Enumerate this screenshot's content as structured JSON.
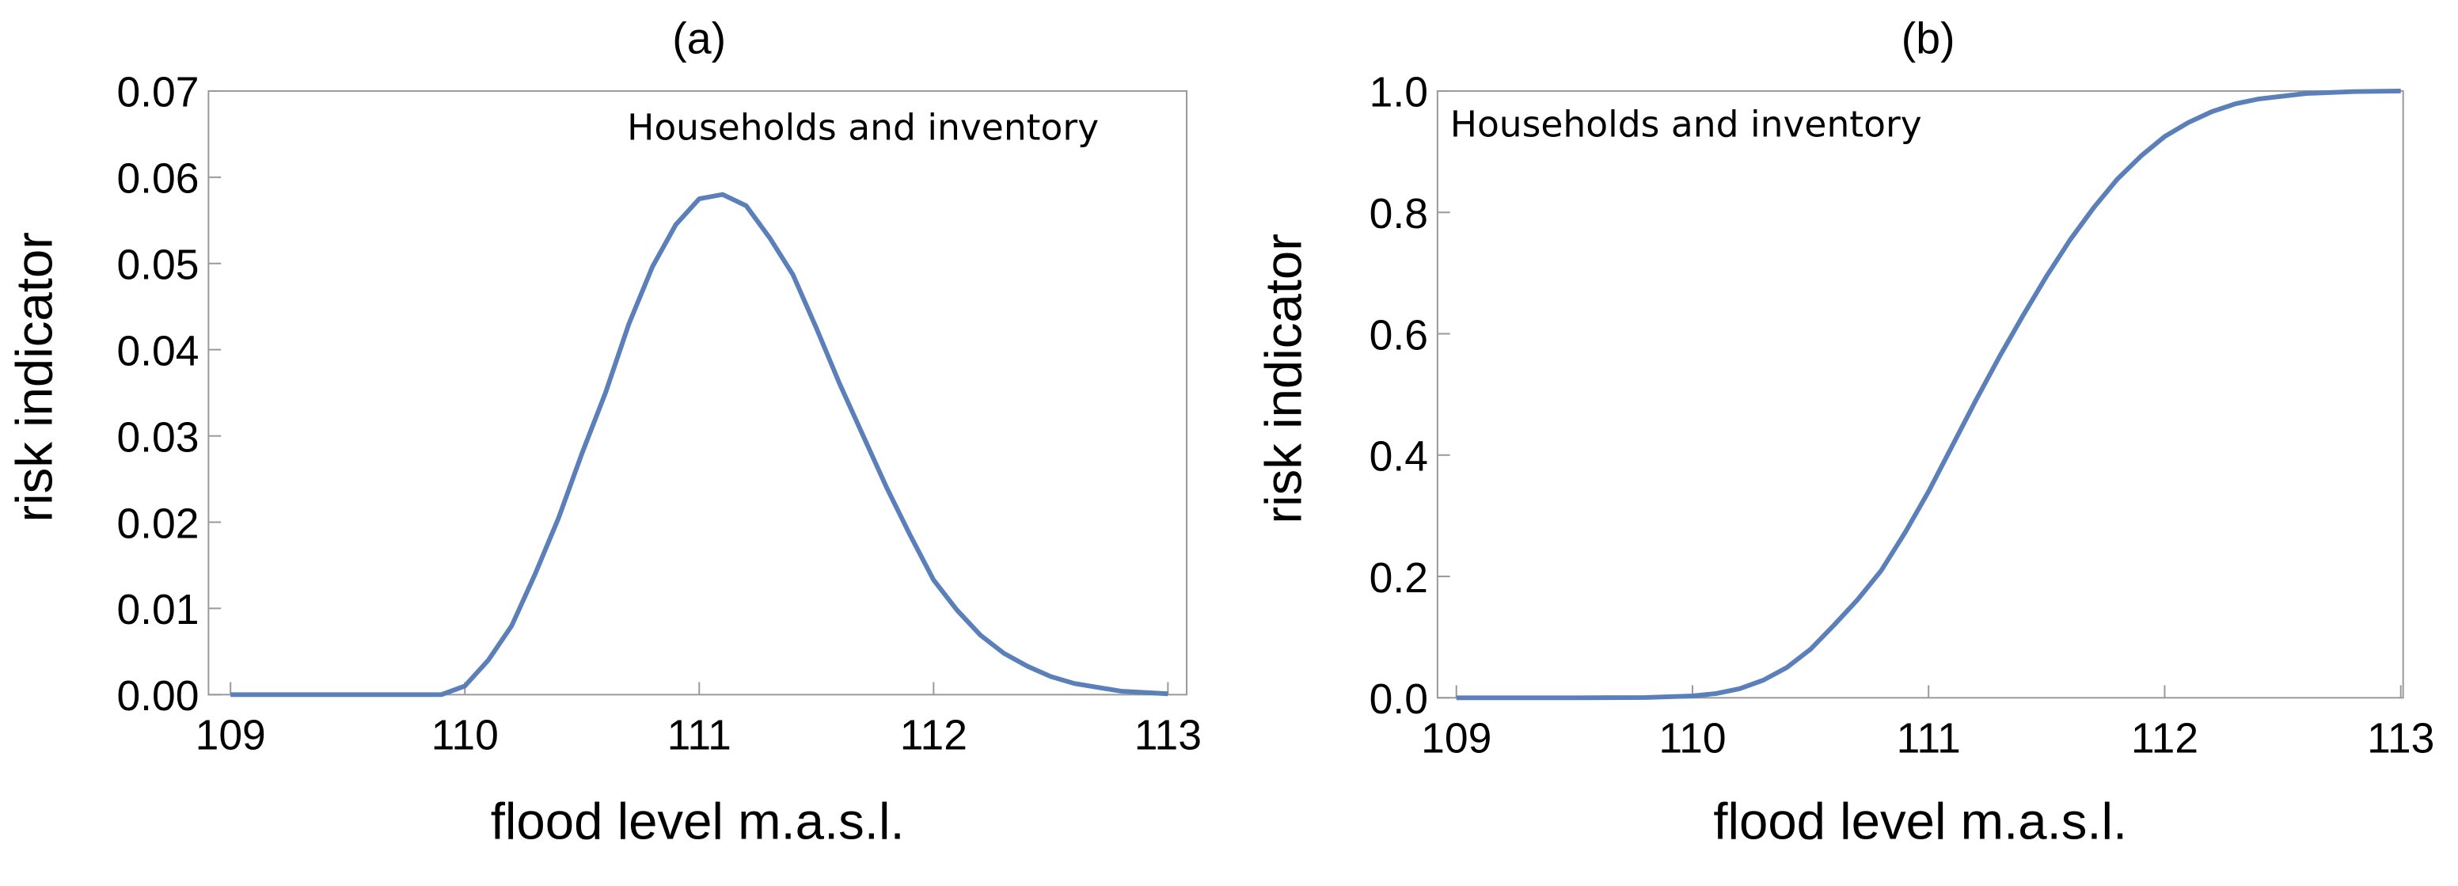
{
  "chart_data": [
    {
      "type": "line",
      "title": "(a)",
      "xlabel": "flood level m.a.s.l.",
      "ylabel": "risk indicator",
      "annotation": "Households and inventory",
      "xlim": [
        108.906,
        113.08
      ],
      "ylim": [
        0,
        0.07
      ],
      "xticks": [
        109,
        110,
        111,
        112,
        113
      ],
      "yticks": [
        {
          "value": 0,
          "label": "0.00"
        },
        0.01,
        0.02,
        0.03,
        0.04,
        0.05,
        0.06,
        0.07
      ],
      "x": [
        109,
        109.5,
        109.9,
        110,
        110.1,
        110.2,
        110.3,
        110.4,
        110.5,
        110.6,
        110.7,
        110.8,
        110.9,
        111,
        111.1,
        111.2,
        111.3,
        111.4,
        111.5,
        111.6,
        111.7,
        111.8,
        111.9,
        112,
        112.1,
        112.2,
        112.3,
        112.4,
        112.5,
        112.6,
        112.8,
        113
      ],
      "series": [
        {
          "name": "Households and inventory",
          "color": "#5b7fb9",
          "values": [
            0,
            0,
            0,
            0.001,
            0.004,
            0.008,
            0.014,
            0.0205,
            0.028,
            0.035,
            0.043,
            0.0496,
            0.0545,
            0.0575,
            0.058,
            0.0567,
            0.053,
            0.0487,
            0.0425,
            0.036,
            0.03,
            0.024,
            0.0185,
            0.0133,
            0.0098,
            0.0069,
            0.0048,
            0.0033,
            0.0021,
            0.0013,
            0.0004,
            0.0001
          ]
        }
      ]
    },
    {
      "type": "line",
      "title": "(b)",
      "xlabel": "flood level m.a.s.l.",
      "ylabel": "risk indicator",
      "annotation": "Households and inventory",
      "xlim": [
        108.92,
        113.01
      ],
      "ylim": [
        0,
        1
      ],
      "xticks": [
        109,
        110,
        111,
        112,
        113
      ],
      "yticks": [
        {
          "value": 0,
          "label": "0.0"
        },
        0.2,
        0.4,
        0.6,
        0.8,
        {
          "value": 1,
          "label": "1.0"
        }
      ],
      "x": [
        109,
        109.5,
        109.8,
        110,
        110.1,
        110.2,
        110.3,
        110.4,
        110.5,
        110.6,
        110.7,
        110.8,
        110.9,
        111,
        111.1,
        111.2,
        111.3,
        111.4,
        111.5,
        111.6,
        111.7,
        111.8,
        111.9,
        112,
        112.1,
        112.2,
        112.3,
        112.4,
        112.6,
        112.8,
        113
      ],
      "series": [
        {
          "name": "Households and inventory",
          "color": "#5b7fb9",
          "values": [
            0,
            0,
            0.0005,
            0.003,
            0.007,
            0.015,
            0.029,
            0.05,
            0.08,
            0.12,
            0.162,
            0.21,
            0.272,
            0.34,
            0.415,
            0.49,
            0.562,
            0.63,
            0.695,
            0.755,
            0.808,
            0.855,
            0.893,
            0.925,
            0.948,
            0.966,
            0.979,
            0.987,
            0.996,
            0.999,
            1.0
          ]
        }
      ]
    }
  ]
}
